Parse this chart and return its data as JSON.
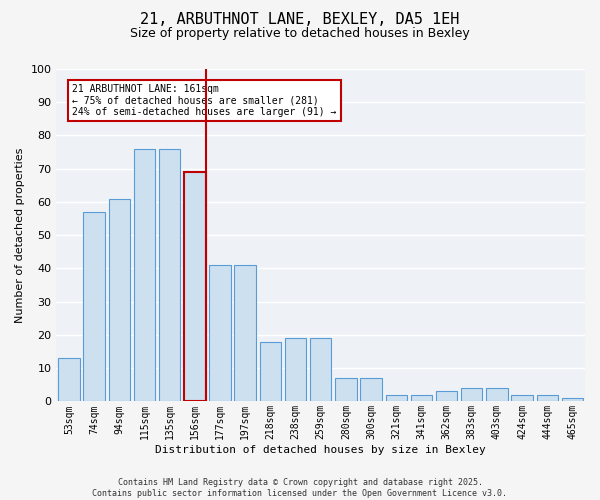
{
  "title_line1": "21, ARBUTHNOT LANE, BEXLEY, DA5 1EH",
  "title_line2": "Size of property relative to detached houses in Bexley",
  "xlabel": "Distribution of detached houses by size in Bexley",
  "ylabel": "Number of detached properties",
  "categories": [
    "53sqm",
    "74sqm",
    "94sqm",
    "115sqm",
    "135sqm",
    "156sqm",
    "177sqm",
    "197sqm",
    "218sqm",
    "238sqm",
    "259sqm",
    "280sqm",
    "300sqm",
    "321sqm",
    "341sqm",
    "362sqm",
    "383sqm",
    "403sqm",
    "424sqm",
    "444sqm",
    "465sqm"
  ],
  "values": [
    13,
    57,
    61,
    76,
    76,
    69,
    41,
    41,
    18,
    19,
    19,
    7,
    7,
    2,
    2,
    3,
    4,
    4,
    2,
    2,
    1
  ],
  "bar_color": "#cce0f0",
  "bar_edge_color": "#5b9bd5",
  "highlight_index": 5,
  "highlight_bar_edge_color": "#c00000",
  "vline_color": "#c00000",
  "annotation_text": "21 ARBUTHNOT LANE: 161sqm\n← 75% of detached houses are smaller (281)\n24% of semi-detached houses are larger (91) →",
  "annotation_box_edge_color": "#c00000",
  "ylim": [
    0,
    100
  ],
  "yticks": [
    0,
    10,
    20,
    30,
    40,
    50,
    60,
    70,
    80,
    90,
    100
  ],
  "background_color": "#eef2f7",
  "grid_color": "#ffffff",
  "footer_line1": "Contains HM Land Registry data © Crown copyright and database right 2025.",
  "footer_line2": "Contains public sector information licensed under the Open Government Licence v3.0."
}
